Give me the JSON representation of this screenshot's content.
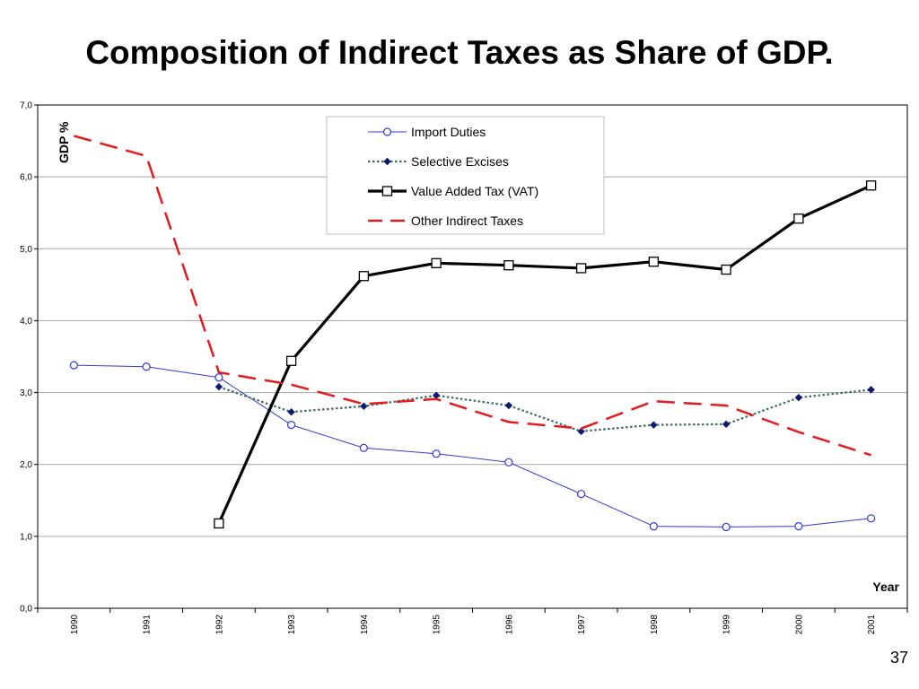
{
  "slide": {
    "title": "Composition of Indirect Taxes as Share of GDP.",
    "page_number": "37"
  },
  "chart_data": {
    "type": "line",
    "ylabel": "GDP %",
    "xlabel": "Year",
    "ylim": [
      0,
      7
    ],
    "y_ticks": [
      "0,0",
      "1,0",
      "2,0",
      "3,0",
      "4,0",
      "5,0",
      "6,0",
      "7,0"
    ],
    "categories": [
      "1990",
      "1991",
      "1992",
      "1993",
      "1994",
      "1995",
      "1996",
      "1997",
      "1998",
      "1999",
      "2000",
      "2001"
    ],
    "grid": "horizontal",
    "legend_position": "top-right",
    "series": [
      {
        "name": "Import Duties",
        "color": "#2e3bd6",
        "line_style": "solid",
        "marker": "open-circle",
        "values": [
          3.38,
          3.36,
          3.21,
          2.55,
          2.23,
          2.15,
          2.03,
          1.59,
          1.14,
          1.13,
          1.14,
          1.25
        ]
      },
      {
        "name": "Selective Excises",
        "color": "#3d6b67",
        "marker_color": "#0d1a6e",
        "line_style": "dotted",
        "marker": "diamond",
        "values": [
          null,
          null,
          3.08,
          2.73,
          2.81,
          2.96,
          2.82,
          2.46,
          2.55,
          2.56,
          2.93,
          3.04
        ]
      },
      {
        "name": "Value Added Tax (VAT)",
        "color": "#000000",
        "line_style": "solid-thick",
        "marker": "open-square",
        "values": [
          null,
          null,
          1.18,
          3.44,
          4.62,
          4.8,
          4.77,
          4.73,
          4.82,
          4.71,
          5.42,
          5.88
        ]
      },
      {
        "name": "Other Indirect Taxes",
        "color": "#e41a1c",
        "line_style": "dashed",
        "marker": "none",
        "values": [
          6.57,
          6.29,
          3.28,
          3.11,
          2.84,
          2.91,
          2.59,
          2.5,
          2.88,
          2.82,
          2.45,
          2.13
        ]
      }
    ]
  }
}
